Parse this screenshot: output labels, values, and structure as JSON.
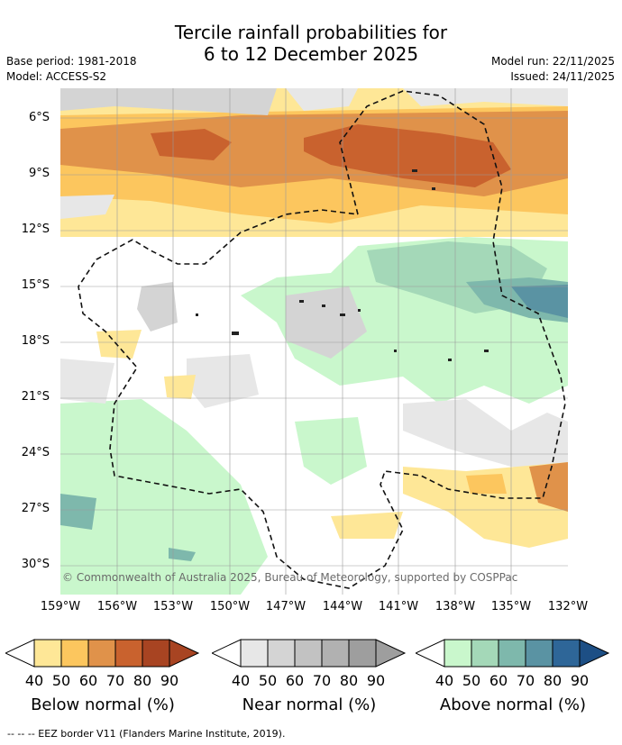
{
  "header": {
    "title_line1": "Tercile rainfall probabilities for",
    "title_line2": "6 to 12 December 2025",
    "base_period": "Base period: 1981-2018",
    "model": "Model: ACCESS-S2",
    "model_run": "Model run: 22/11/2025",
    "issued": "Issued: 24/11/2025"
  },
  "map": {
    "copyright": "© Commonwealth of Australia 2025, Bureau of Meteorology, supported by COSPPac",
    "lat_labels": [
      "6°S",
      "9°S",
      "12°S",
      "15°S",
      "18°S",
      "21°S",
      "24°S",
      "27°S",
      "30°S"
    ],
    "lon_labels": [
      "159°W",
      "156°W",
      "153°W",
      "150°W",
      "147°W",
      "144°W",
      "141°W",
      "138°W",
      "135°W",
      "132°W"
    ],
    "lat_values": [
      -6,
      -9,
      -12,
      -15,
      -18,
      -21,
      -24,
      -27,
      -30
    ],
    "lon_values": [
      -159,
      -156,
      -153,
      -150,
      -147,
      -144,
      -141,
      -138,
      -135,
      -132
    ],
    "lat_range": [
      -31.5,
      -4.5
    ],
    "lon_range": [
      -159,
      -132
    ]
  },
  "legend": {
    "ticks": [
      "40",
      "50",
      "60",
      "70",
      "80",
      "90"
    ],
    "below": {
      "label": "Below normal (%)",
      "colors": [
        "#fee797",
        "#fcc65e",
        "#e0924a",
        "#c9622e",
        "#a84422",
        "#a84422"
      ]
    },
    "near": {
      "label": "Near normal (%)",
      "colors": [
        "#e7e7e7",
        "#d4d4d4",
        "#c2c2c2",
        "#b1b1b1",
        "#9e9e9e",
        "#9e9e9e"
      ]
    },
    "above": {
      "label": "Above normal (%)",
      "colors": [
        "#c9f7cc",
        "#a4d8b8",
        "#7eb8ac",
        "#5a93a3",
        "#2e6698",
        "#1d4f85"
      ]
    }
  },
  "footer": {
    "eez_note": "--  --  -- EEZ border V11 (Flanders Marine Institute, 2019)."
  }
}
